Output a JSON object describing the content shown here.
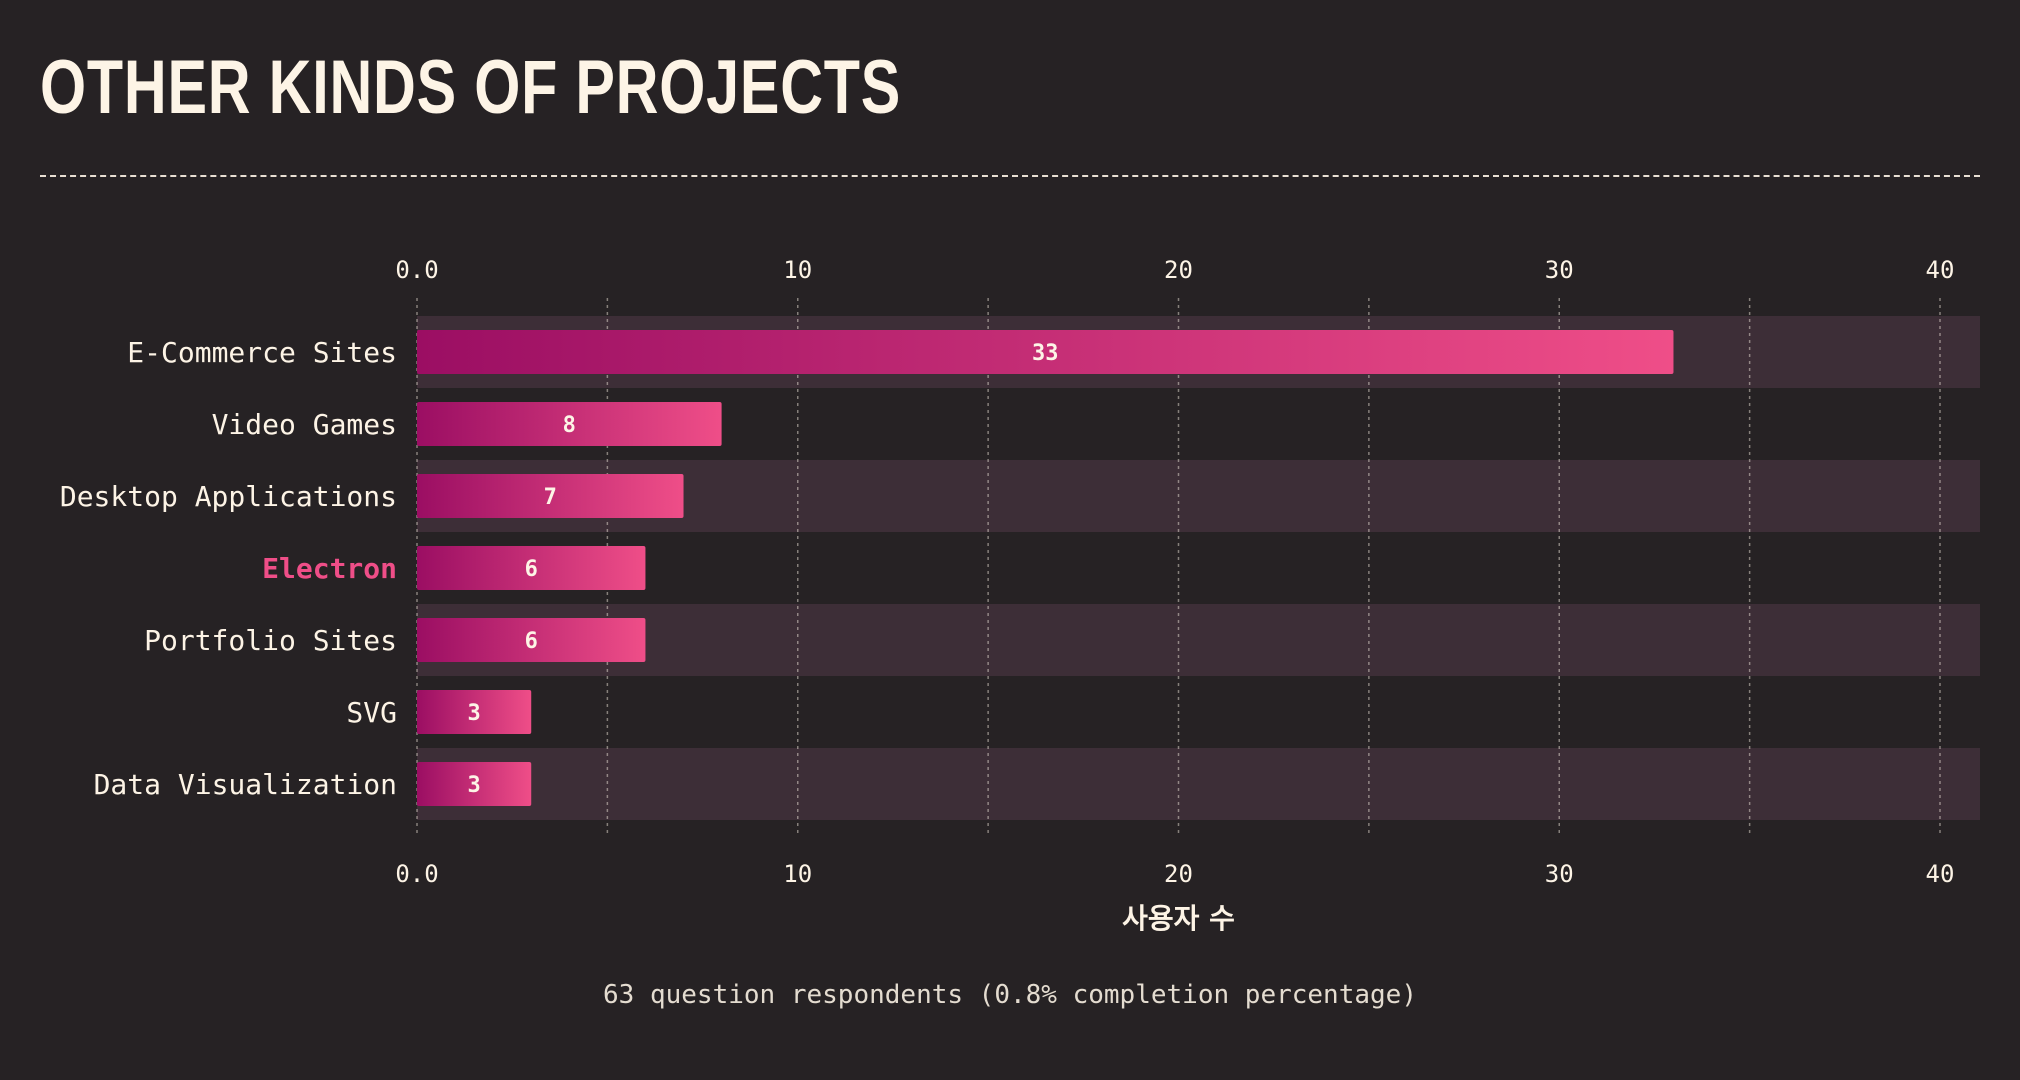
{
  "page": {
    "title": "Other Kinds of Projects",
    "footer_note": "63 question respondents (0.8% completion percentage)"
  },
  "colors": {
    "background": "#262224",
    "band": "#3d2e37",
    "text": "#fdf4e6",
    "bar_start": "#9b0e63",
    "bar_end": "#ef4e88",
    "highlight": "#ef4e88"
  },
  "chart_data": {
    "type": "bar",
    "orientation": "horizontal",
    "categories": [
      "E-Commerce Sites",
      "Video Games",
      "Desktop Applications",
      "Electron",
      "Portfolio Sites",
      "SVG",
      "Data Visualization"
    ],
    "values": [
      33,
      8,
      7,
      6,
      6,
      3,
      3
    ],
    "highlighted_category": "Electron",
    "xlabel": "사용자 수",
    "ylabel": "",
    "xlim": [
      0,
      41
    ],
    "x_ticks": [
      0,
      10,
      20,
      30,
      40
    ],
    "x_tick_labels": [
      "0.0",
      "10",
      "20",
      "30",
      "40"
    ],
    "minor_grid_step": 5,
    "grid": true,
    "tick_labels_top_and_bottom": true,
    "data_labels": true
  }
}
